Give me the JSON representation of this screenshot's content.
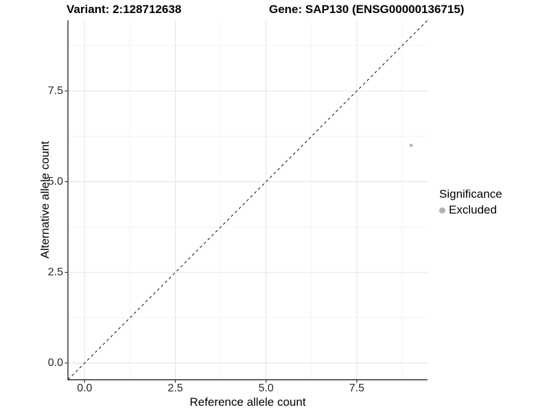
{
  "header": {
    "title_left": "Variant: 2:128712638",
    "title_right": "Gene: SAP130 (ENSG00000136715)"
  },
  "chart_data": {
    "type": "scatter",
    "title": "Variant: 2:128712638   Gene: SAP130 (ENSG00000136715)",
    "xlabel": "Reference allele count",
    "ylabel": "Alternative allele count",
    "xlim": [
      -0.46,
      9.45
    ],
    "ylim": [
      -0.46,
      9.45
    ],
    "x_ticks": {
      "values": [
        0,
        2.5,
        5,
        7.5
      ],
      "labels": [
        "0.0",
        "2.5",
        "5.0",
        "7.5"
      ]
    },
    "y_ticks": {
      "values": [
        0,
        2.5,
        5,
        7.5
      ],
      "labels": [
        "0.0",
        "2.5",
        "5.0",
        "7.5"
      ]
    },
    "minor_breaks": [
      1.25,
      3.75,
      6.25,
      8.75
    ],
    "grid": "major+minor",
    "reference_line": {
      "kind": "identity",
      "slope": 1,
      "intercept": 0,
      "style": "dashed",
      "color": "#1a1a1a"
    },
    "series": [
      {
        "name": "Excluded",
        "color": "#b3b3b3",
        "points": [
          {
            "x": 9,
            "y": 6
          }
        ]
      }
    ],
    "legend": {
      "title": "Significance",
      "position": "right",
      "entries": [
        {
          "label": "Excluded",
          "color": "#b3b3b3",
          "marker": "circle"
        }
      ]
    },
    "colors": {
      "background": "#ffffff",
      "grid_major": "#e4e4e4",
      "grid_minor": "#f2f2f2",
      "axis_line": "#000000",
      "tick_mark": "#333333",
      "tick_text": "#262626",
      "point": "#b3b3b3"
    }
  }
}
